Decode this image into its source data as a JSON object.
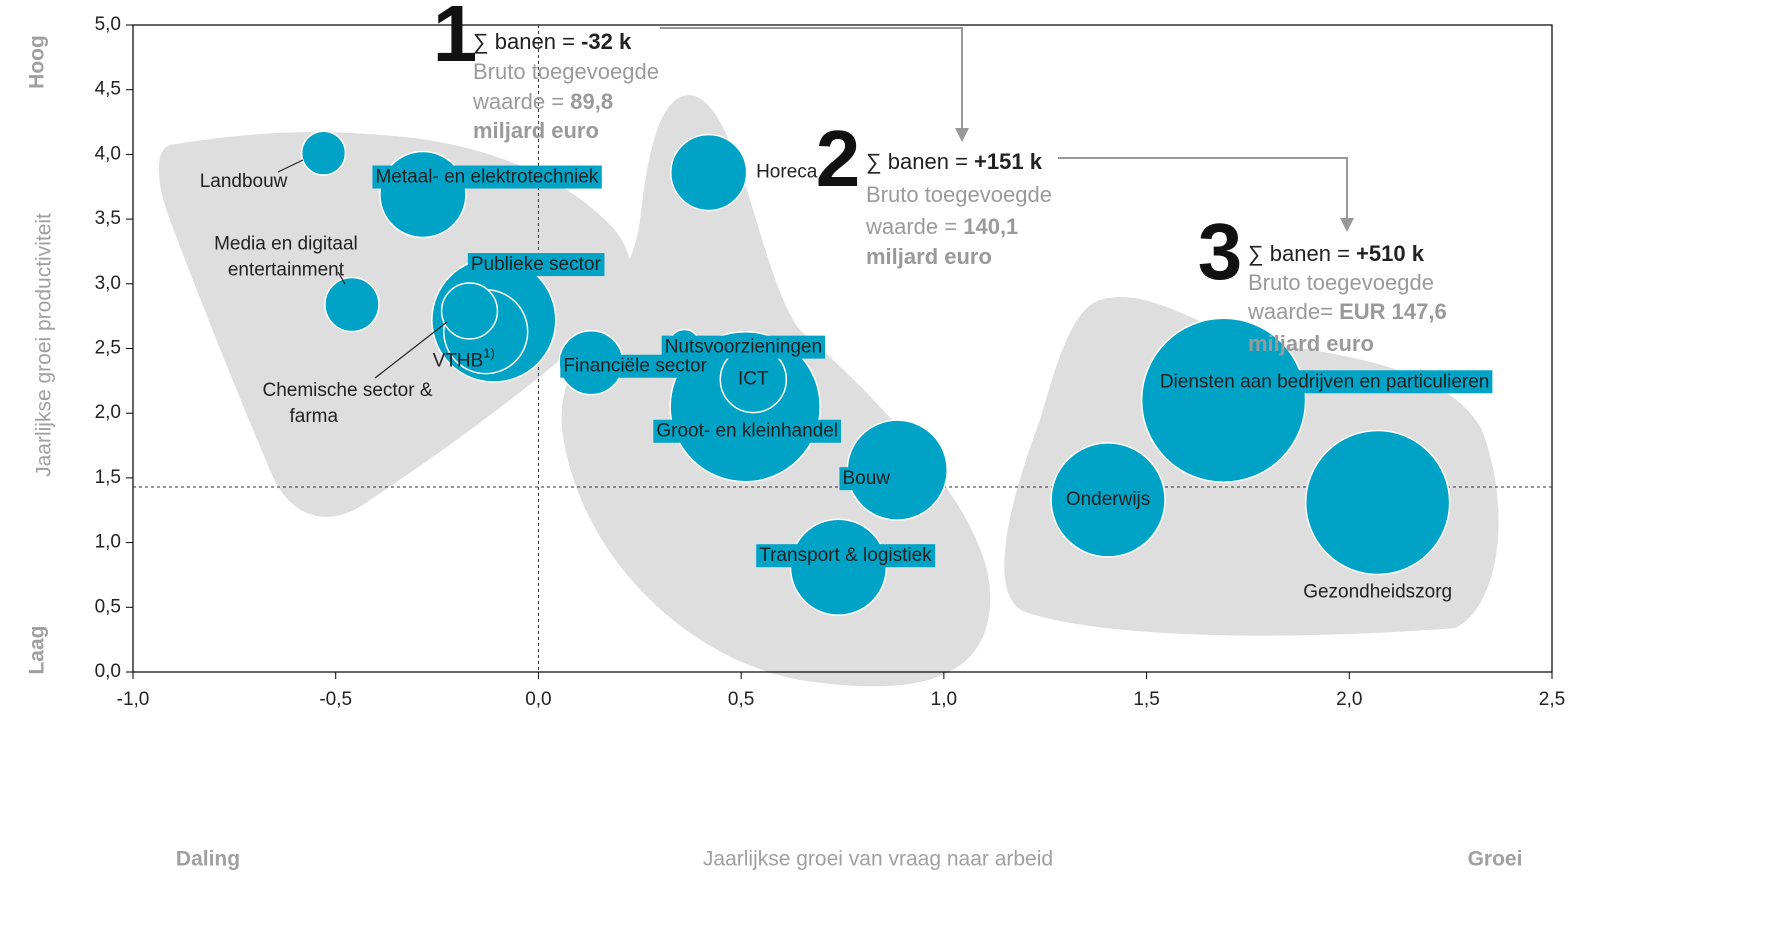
{
  "chart_data": {
    "type": "bubble",
    "x_label": "Jaarlijkse groei van vraag naar arbeid",
    "y_label": "Jaarlijkse groei productiviteit",
    "x_low": "Daling",
    "x_high": "Groei",
    "y_high": "Hoog",
    "y_low": "Laag",
    "xlim": [
      -1.0,
      2.5
    ],
    "xticks": [
      {
        "value": -1.0,
        "label": "-1,0"
      },
      {
        "value": -0.5,
        "label": "-0,5"
      },
      {
        "value": 0.0,
        "label": "0,0"
      },
      {
        "value": 0.5,
        "label": "0,5"
      },
      {
        "value": 1.0,
        "label": "1,0"
      },
      {
        "value": 1.5,
        "label": "1,5"
      },
      {
        "value": 2.0,
        "label": "2,0"
      },
      {
        "value": 2.5,
        "label": "2,5"
      }
    ],
    "ylim": [
      0.0,
      5.0
    ],
    "yticks": [
      {
        "value": 0.0,
        "label": "0,0"
      },
      {
        "value": 0.5,
        "label": "0,5"
      },
      {
        "value": 1.0,
        "label": "1,0"
      },
      {
        "value": 1.5,
        "label": "1,5"
      },
      {
        "value": 2.0,
        "label": "2,0"
      },
      {
        "value": 2.5,
        "label": "2,5"
      },
      {
        "value": 3.0,
        "label": "3,0"
      },
      {
        "value": 3.5,
        "label": "3,5"
      },
      {
        "value": 4.0,
        "label": "4,0"
      },
      {
        "value": 4.5,
        "label": "4,5"
      },
      {
        "value": 5.0,
        "label": "5,0"
      }
    ],
    "reference_x": 0.0,
    "reference_y": 1.43,
    "color": "#00a3c6",
    "labels": [
      "Landbouw",
      "Metaal- en elektrotechniek",
      [
        "Media en digitaal",
        "entertainment"
      ],
      "Publieke sector",
      "VTHB",
      [
        "Chemische sector &",
        "farma"
      ],
      "Financiële sector",
      "Nutsvoorzieningen",
      "Horeca",
      "Groot- en kleinhandel",
      "ICT",
      "Bouw",
      "Transport & logistiek",
      "Onderwijs",
      "Diensten aan bedrijven en particulieren",
      "Gezondheidszorg"
    ],
    "label_notes": [
      null,
      null,
      null,
      null,
      "1)",
      null,
      null,
      null,
      null,
      null,
      null,
      null,
      null,
      null,
      null,
      null
    ],
    "x": [
      -0.53,
      -0.285,
      -0.46,
      -0.11,
      -0.13,
      -0.17,
      0.13,
      0.36,
      0.42,
      0.51,
      0.53,
      0.885,
      0.74,
      1.405,
      1.69,
      2.07
    ],
    "values": [
      4.01,
      3.69,
      2.84,
      2.72,
      2.63,
      2.79,
      2.39,
      2.53,
      3.86,
      2.05,
      2.26,
      1.56,
      0.81,
      1.33,
      2.1,
      1.31
    ],
    "sizes": [
      4.8,
      18.5,
      7.3,
      38.4,
      17.6,
      7.8,
      10.2,
      2.3,
      14.4,
      56.3,
      10.9,
      25,
      23,
      32.5,
      67.2,
      51.8
    ],
    "groups": [
      {
        "number": "1",
        "jobs_label": "∑ banen = ",
        "jobs": "-32 k",
        "gva_line1": "Bruto toegevoegde",
        "gva_label": "waarde = ",
        "gva": "89,8",
        "gva_unit": "miljard euro"
      },
      {
        "number": "2",
        "jobs_label": "∑ banen = ",
        "jobs": "+151 k",
        "gva_line1": "Bruto toegevoegde",
        "gva_label": "waarde = ",
        "gva": "140,1",
        "gva_unit": "miljard euro"
      },
      {
        "number": "3",
        "jobs_label": "∑ banen = ",
        "jobs": "+510 k",
        "gva_line1": "Bruto toegevoegde",
        "gva_label": "waarde= ",
        "gva": "EUR 147,6",
        "gva_unit": "miljard euro"
      }
    ]
  }
}
